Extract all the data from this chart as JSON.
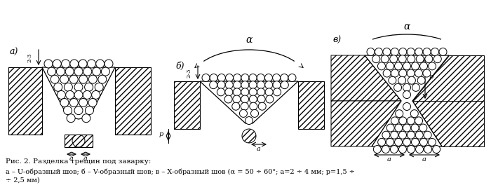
{
  "caption_line1": "Рис. 2. Разделка трещин под заварку:",
  "caption_line2": "а – U-образный шов; б – V-образный шов; в – X-образный шов (α = 50 ÷ 60°; a=2 ÷ 4 мм; p=1,5 ÷",
  "caption_line3": "÷ 2,5 мм)",
  "label_a": "а)",
  "label_b": "б)",
  "label_v": "в)",
  "bg_color": "#ffffff"
}
